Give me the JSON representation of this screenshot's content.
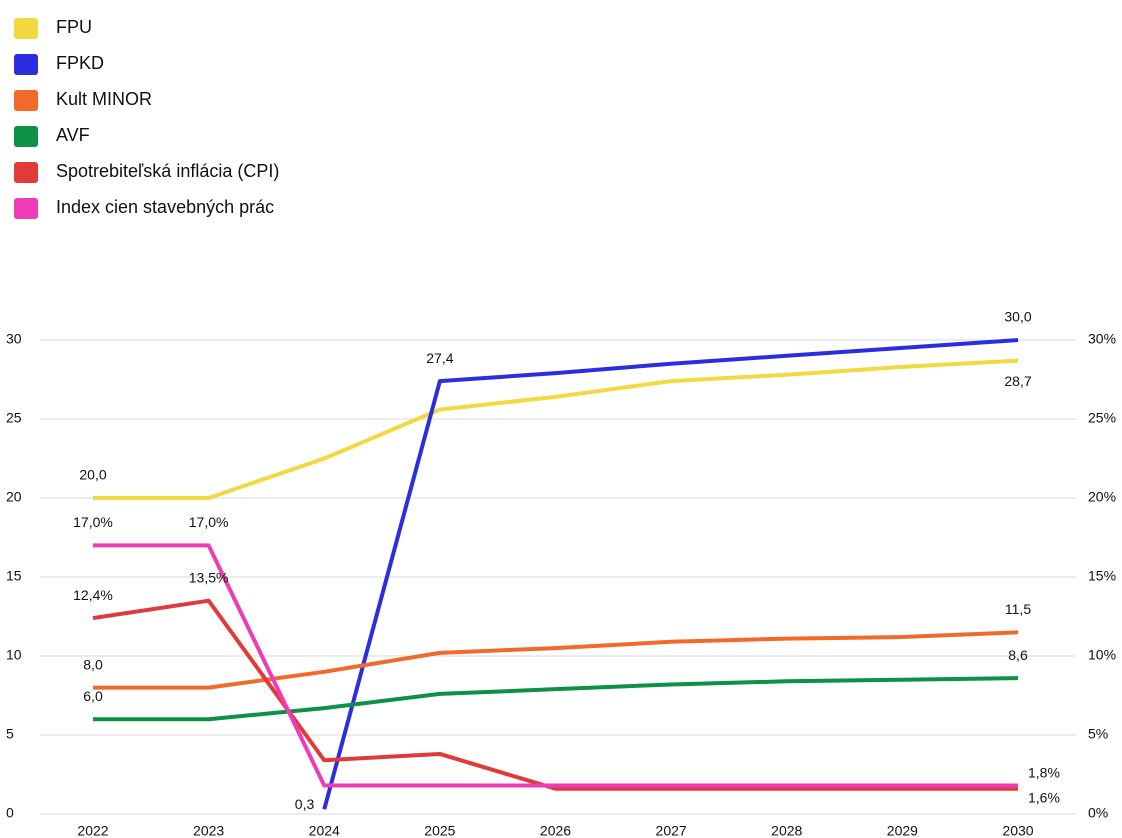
{
  "chart_data": {
    "type": "line",
    "categories": [
      "2022",
      "2023",
      "2024",
      "2025",
      "2026",
      "2027",
      "2028",
      "2029",
      "2030"
    ],
    "series": [
      {
        "name": "FPU",
        "color": "#f2d940",
        "values": [
          20.0,
          20.0,
          22.5,
          25.6,
          26.4,
          27.4,
          27.8,
          28.3,
          28.7
        ],
        "value_labels": [
          "20,0",
          null,
          null,
          null,
          null,
          null,
          null,
          null,
          "28,7"
        ]
      },
      {
        "name": "FPKD",
        "color": "#2b2de0",
        "values": [
          null,
          null,
          0.3,
          27.4,
          27.9,
          28.5,
          29.0,
          29.5,
          30.0
        ],
        "value_labels": [
          null,
          null,
          "0,3",
          "27,4",
          null,
          null,
          null,
          null,
          "30,0"
        ]
      },
      {
        "name": "Kult MINOR",
        "color": "#f26a2a",
        "values": [
          8.0,
          8.0,
          9.0,
          10.2,
          10.5,
          10.9,
          11.1,
          11.2,
          11.5
        ],
        "value_labels": [
          "8,0",
          null,
          null,
          null,
          null,
          null,
          null,
          null,
          "11,5"
        ]
      },
      {
        "name": "AVF",
        "color": "#0e9146",
        "values": [
          6.0,
          6.0,
          6.7,
          7.6,
          7.9,
          8.2,
          8.4,
          8.5,
          8.6
        ],
        "value_labels": [
          "6,0",
          null,
          null,
          null,
          null,
          null,
          null,
          null,
          "8,6"
        ]
      },
      {
        "name": "Spotrebiteľská inflácia (CPI)",
        "color": "#e03a3a",
        "axis": "y2",
        "values": [
          12.4,
          13.5,
          3.4,
          3.8,
          1.6,
          1.6,
          1.6,
          1.6,
          1.6
        ],
        "value_labels": [
          "12,4%",
          "13,5%",
          null,
          null,
          null,
          null,
          null,
          null,
          "1,6%"
        ]
      },
      {
        "name": "Index cien stavebných prác",
        "color": "#ee3cb8",
        "axis": "y2",
        "values": [
          17.0,
          17.0,
          1.8,
          1.8,
          1.8,
          1.8,
          1.8,
          1.8,
          1.8
        ],
        "value_labels": [
          "17,0%",
          "17,0%",
          null,
          null,
          null,
          null,
          null,
          null,
          "1,8%"
        ]
      }
    ],
    "ylim": [
      0,
      30
    ],
    "yticks": [
      0,
      5,
      10,
      15,
      20,
      25,
      30
    ],
    "y2lim": [
      0,
      30
    ],
    "y2ticks": [
      {
        "value": 0,
        "label": "0%"
      },
      {
        "value": 5,
        "label": "5%"
      },
      {
        "value": 10,
        "label": "10%"
      },
      {
        "value": 15,
        "label": "15%"
      },
      {
        "value": 20,
        "label": "20%"
      },
      {
        "value": 25,
        "label": "25%"
      },
      {
        "value": 30,
        "label": "30%"
      }
    ],
    "grid": true,
    "legend": "top-left"
  }
}
